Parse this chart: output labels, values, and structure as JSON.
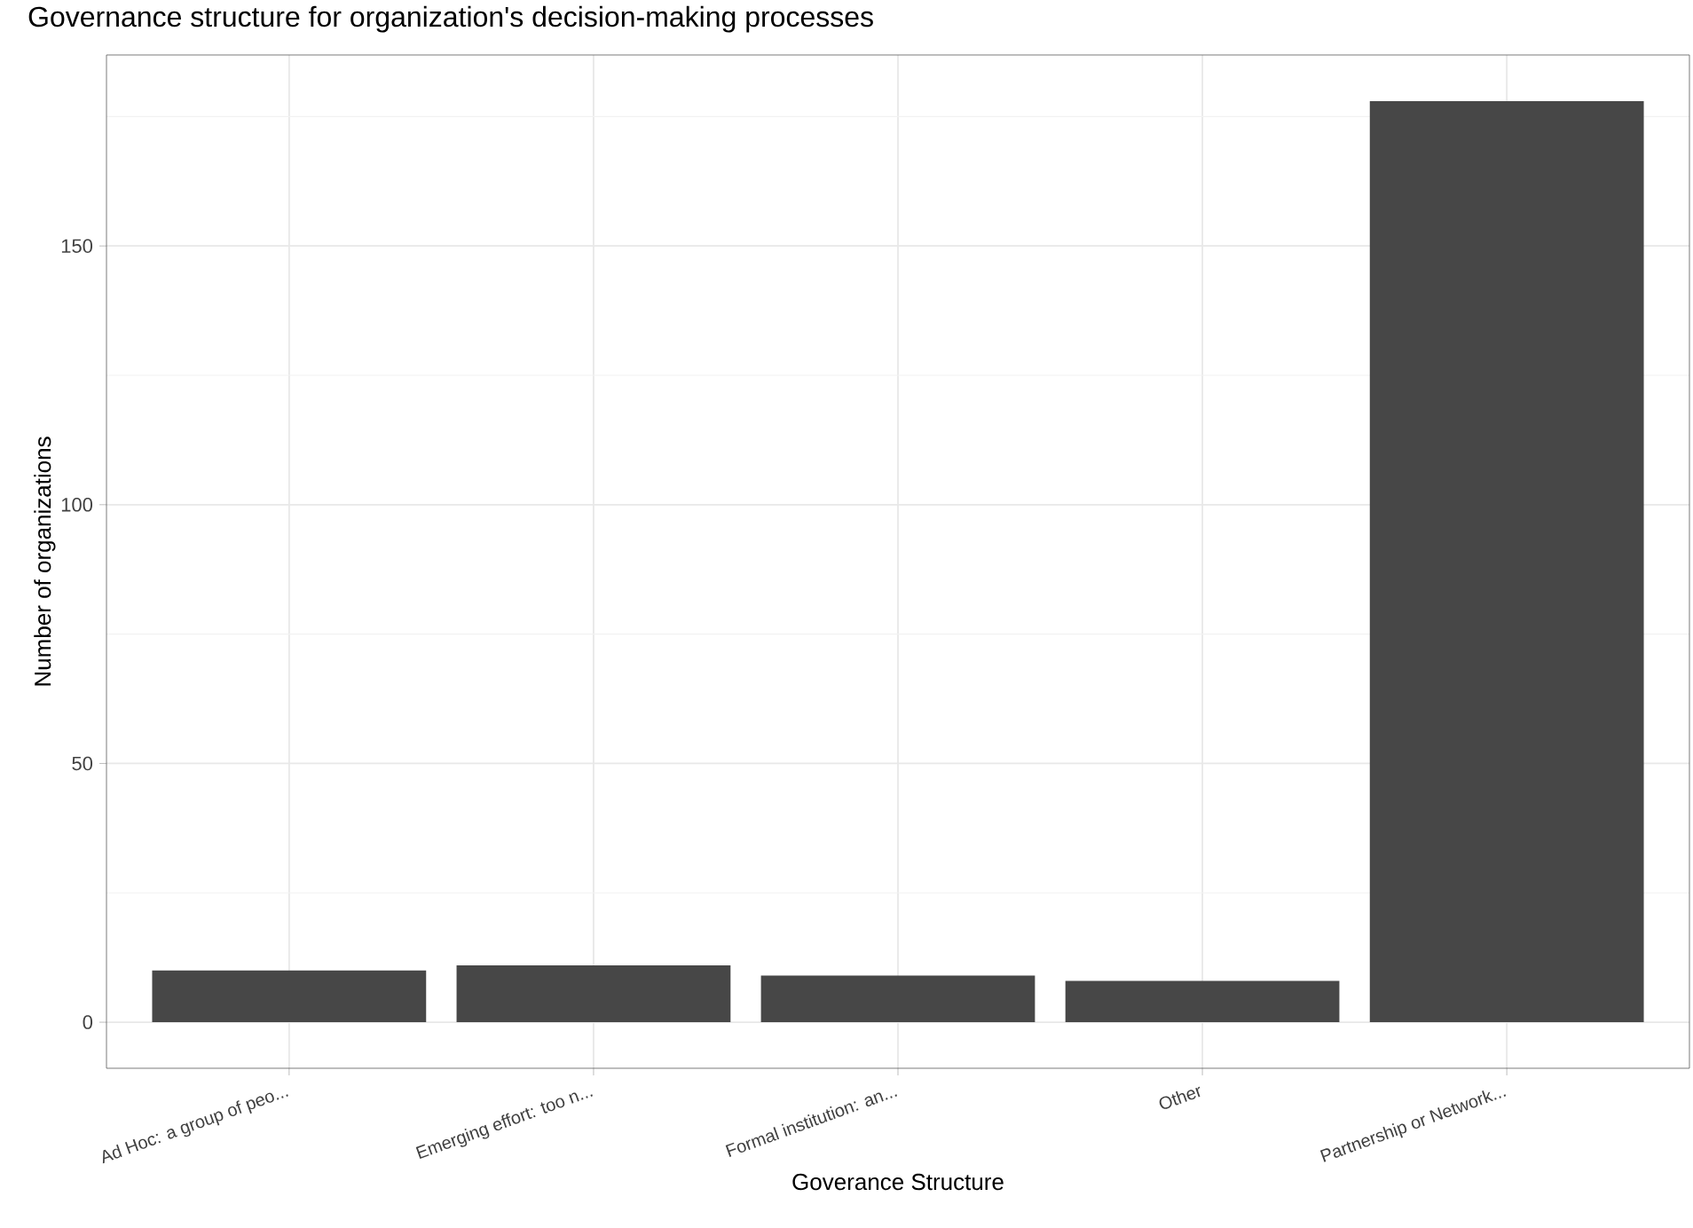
{
  "chart_data": {
    "type": "bar",
    "title": "Governance structure for organization's decision-making processes",
    "xlabel": "Goverance Structure",
    "ylabel": "Number of organizations",
    "categories": [
      "Ad Hoc: a group of peo...",
      "Emerging effort: too n...",
      "Formal institution: an...",
      "Other",
      "Partnership or Network..."
    ],
    "values": [
      10,
      11,
      9,
      8,
      178
    ],
    "color": "#474747",
    "ylim": [
      -8.9,
      186.9
    ],
    "yticks": [
      0,
      {
        "value": 25,
        "label": null
      },
      50,
      {
        "value": 75,
        "label": null
      },
      100,
      {
        "value": 125,
        "label": null
      },
      150,
      {
        "value": 175,
        "label": null
      }
    ],
    "grid": true
  }
}
